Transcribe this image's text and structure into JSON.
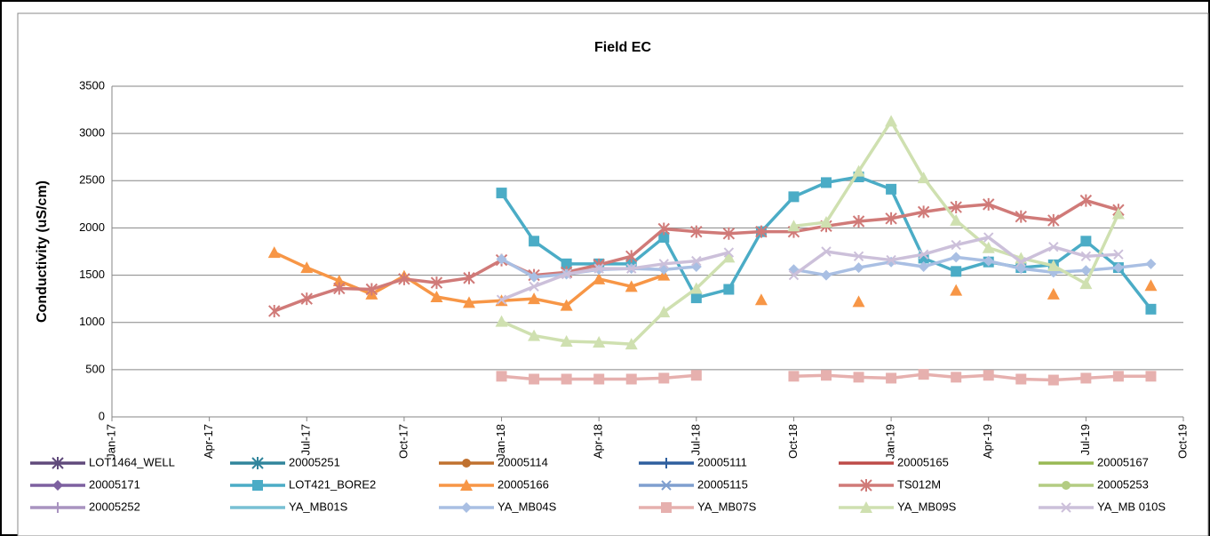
{
  "chart_data": {
    "type": "line",
    "title": "Field EC",
    "y_label": "Conductivity (uS/cm)",
    "x": [
      "Jun-17",
      "Jul-17",
      "Aug-17",
      "Sep-17",
      "Oct-17",
      "Nov-17",
      "Dec-17",
      "Jan-18",
      "Feb-18",
      "Mar-18",
      "Apr-18",
      "May-18",
      "Jun-18",
      "Jul-18",
      "Aug-18",
      "Sep-18",
      "Oct-18",
      "Nov-18",
      "Dec-18",
      "Jan-19",
      "Feb-19",
      "Mar-19",
      "Apr-19",
      "May-19",
      "Jun-19",
      "Jul-19",
      "Aug-19",
      "Sep-19"
    ],
    "xlim": [
      "Jan-17",
      "Oct-19"
    ],
    "xticks": [
      "Jan-17",
      "Apr-17",
      "Jul-17",
      "Oct-17",
      "Jan-18",
      "Apr-18",
      "Jul-18",
      "Oct-18",
      "Jan-19",
      "Apr-19",
      "Jul-19",
      "Oct-19"
    ],
    "ylim": [
      0,
      3500
    ],
    "yticks": [
      0,
      500,
      1000,
      1500,
      2000,
      2500,
      3000,
      3500
    ],
    "grid": true,
    "series": [
      {
        "name": "LOT1464_WELL",
        "color": "#604a7b",
        "marker": "star",
        "values": [
          null,
          null,
          null,
          null,
          null,
          null,
          null,
          null,
          null,
          null,
          null,
          null,
          null,
          null,
          null,
          null,
          null,
          null,
          null,
          null,
          null,
          null,
          null,
          null,
          null,
          null,
          null,
          null
        ]
      },
      {
        "name": "20005251",
        "color": "#31859c",
        "marker": "star",
        "values": [
          null,
          null,
          null,
          null,
          null,
          null,
          null,
          null,
          null,
          null,
          null,
          null,
          null,
          null,
          null,
          null,
          null,
          null,
          null,
          null,
          null,
          null,
          null,
          null,
          null,
          null,
          null,
          null
        ]
      },
      {
        "name": "20005114",
        "color": "#c0712f",
        "marker": "circle",
        "values": [
          null,
          null,
          null,
          null,
          null,
          null,
          null,
          null,
          null,
          null,
          null,
          null,
          null,
          null,
          null,
          null,
          null,
          null,
          null,
          null,
          null,
          null,
          null,
          null,
          null,
          null,
          null,
          null
        ]
      },
      {
        "name": "20005111",
        "color": "#2f5f9e",
        "marker": "plus",
        "values": [
          null,
          null,
          null,
          null,
          null,
          null,
          null,
          null,
          null,
          null,
          null,
          null,
          null,
          null,
          null,
          null,
          null,
          null,
          null,
          null,
          null,
          null,
          null,
          null,
          null,
          null,
          null,
          null
        ]
      },
      {
        "name": "20005165",
        "color": "#be4b48",
        "marker": "none",
        "values": [
          null,
          null,
          null,
          null,
          null,
          null,
          null,
          null,
          null,
          null,
          null,
          null,
          null,
          null,
          null,
          null,
          null,
          null,
          null,
          null,
          null,
          null,
          null,
          null,
          null,
          null,
          null,
          null
        ]
      },
      {
        "name": "20005167",
        "color": "#98b954",
        "marker": "none",
        "values": [
          null,
          null,
          null,
          null,
          null,
          null,
          null,
          null,
          null,
          null,
          null,
          null,
          null,
          null,
          null,
          null,
          null,
          null,
          null,
          null,
          null,
          null,
          null,
          null,
          null,
          null,
          null,
          null
        ]
      },
      {
        "name": "20005171",
        "color": "#7d60a0",
        "marker": "diamond",
        "values": [
          null,
          null,
          null,
          null,
          null,
          null,
          null,
          null,
          null,
          null,
          null,
          null,
          null,
          null,
          null,
          null,
          null,
          null,
          null,
          null,
          null,
          null,
          null,
          null,
          null,
          null,
          null,
          null
        ]
      },
      {
        "name": "LOT421_BORE2",
        "color": "#4bacc6",
        "marker": "square",
        "values": [
          null,
          null,
          null,
          null,
          null,
          null,
          null,
          2370,
          1860,
          1620,
          1620,
          1620,
          1900,
          1260,
          1350,
          1960,
          2330,
          2480,
          2540,
          2410,
          1680,
          1540,
          1640,
          1580,
          1610,
          1860,
          1580,
          1140
        ]
      },
      {
        "name": "20005166",
        "color": "#f79646",
        "marker": "triangle",
        "values": [
          1740,
          1580,
          1440,
          1300,
          1490,
          1270,
          1210,
          1230,
          1250,
          1180,
          1460,
          1380,
          1500,
          null,
          null,
          1240,
          null,
          null,
          1220,
          null,
          null,
          1340,
          null,
          null,
          1300,
          null,
          null,
          1390
        ]
      },
      {
        "name": "20005115",
        "color": "#7f9fcf",
        "marker": "x",
        "values": [
          null,
          null,
          null,
          null,
          null,
          null,
          null,
          null,
          null,
          null,
          null,
          null,
          null,
          null,
          null,
          null,
          null,
          null,
          null,
          null,
          null,
          null,
          null,
          null,
          null,
          null,
          null,
          null
        ]
      },
      {
        "name": "TS012M",
        "color": "#d07a78",
        "marker": "star",
        "values": [
          1120,
          1250,
          1360,
          1350,
          1460,
          1420,
          1470,
          1660,
          1500,
          1530,
          1610,
          1700,
          1990,
          1960,
          1940,
          1960,
          1960,
          2020,
          2070,
          2100,
          2170,
          2220,
          2250,
          2120,
          2080,
          2290,
          2190,
          null
        ]
      },
      {
        "name": "20005253",
        "color": "#b3cc82",
        "marker": "circle",
        "values": [
          null,
          null,
          null,
          null,
          null,
          null,
          null,
          null,
          null,
          null,
          null,
          null,
          null,
          null,
          null,
          null,
          null,
          null,
          null,
          null,
          null,
          null,
          null,
          null,
          null,
          null,
          null,
          null
        ]
      },
      {
        "name": "20005252",
        "color": "#a993c0",
        "marker": "plus",
        "values": [
          null,
          null,
          null,
          null,
          null,
          null,
          null,
          null,
          null,
          null,
          null,
          null,
          null,
          null,
          null,
          null,
          null,
          null,
          null,
          null,
          null,
          null,
          null,
          null,
          null,
          null,
          null,
          null
        ]
      },
      {
        "name": "YA_MB01S",
        "color": "#78c0d4",
        "marker": "none",
        "values": [
          null,
          null,
          null,
          null,
          null,
          null,
          null,
          null,
          null,
          null,
          null,
          null,
          null,
          null,
          null,
          null,
          null,
          null,
          null,
          null,
          null,
          null,
          null,
          null,
          null,
          null,
          null,
          null
        ]
      },
      {
        "name": "YA_MB04S",
        "color": "#a9bfe3",
        "marker": "diamond",
        "values": [
          null,
          null,
          null,
          null,
          null,
          null,
          null,
          1670,
          1480,
          1510,
          1560,
          1570,
          1560,
          1590,
          null,
          null,
          1560,
          1500,
          1580,
          1640,
          1590,
          1690,
          1650,
          1570,
          1530,
          1550,
          1580,
          1620
        ]
      },
      {
        "name": "YA_MB07S",
        "color": "#e6b0ae",
        "marker": "square",
        "values": [
          null,
          null,
          null,
          null,
          null,
          null,
          null,
          430,
          400,
          400,
          400,
          400,
          410,
          440,
          null,
          null,
          430,
          440,
          420,
          410,
          450,
          420,
          440,
          400,
          390,
          410,
          430,
          430
        ]
      },
      {
        "name": "YA_MB09S",
        "color": "#cfe0b0",
        "marker": "triangle",
        "values": [
          null,
          null,
          null,
          null,
          null,
          null,
          null,
          1010,
          860,
          800,
          790,
          770,
          1110,
          1360,
          1690,
          null,
          2020,
          2060,
          2600,
          3130,
          2530,
          2080,
          1790,
          1680,
          1600,
          1410,
          2150,
          null
        ]
      },
      {
        "name": "YA_MB 010S",
        "color": "#ccc0da",
        "marker": "x",
        "values": [
          null,
          null,
          null,
          null,
          null,
          null,
          null,
          1240,
          1380,
          1510,
          1570,
          1570,
          1620,
          1650,
          1740,
          null,
          1500,
          1750,
          1700,
          1660,
          1720,
          1820,
          1900,
          1640,
          1800,
          1700,
          1720,
          null
        ]
      }
    ]
  }
}
